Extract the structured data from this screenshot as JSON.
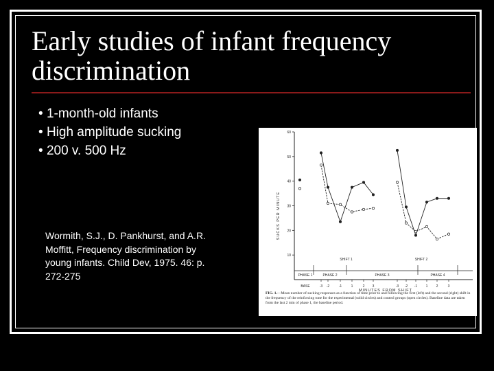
{
  "slide": {
    "title": "Early studies of infant frequency discrimination",
    "bullets": [
      "1-month-old infants",
      "High amplitude sucking",
      "200 v. 500 Hz"
    ],
    "citation": "Wormith, S.J., D. Pankhurst, and A.R. Moffitt, Frequency discrimination by young infants. Child Dev, 1975. 46: p. 272-275",
    "colors": {
      "background": "#000000",
      "text": "#ffffff",
      "rule": "#8b1a1a"
    }
  },
  "chart_data": {
    "type": "line",
    "ylabel": "SUCKS PER MINUTE",
    "xlabel": "MINUTES FROM SHIFT",
    "ylim": [
      0,
      60
    ],
    "yticks": [
      10,
      20,
      30,
      40,
      50,
      60
    ],
    "grid": false,
    "legend": "none",
    "shift_labels": [
      "SHIFT 1",
      "SHIFT 2"
    ],
    "phase_labels": [
      "PHASE 1",
      "PHASE 2",
      "PHASE 3",
      "PHASE 4"
    ],
    "base_label": "BASE",
    "panels": [
      {
        "name": "SHIFT 1",
        "x_labels": [
          "-3",
          "-2",
          "-1",
          "1",
          "2",
          "3"
        ],
        "series": [
          {
            "name": "experimental",
            "marker": "filled",
            "values": [
              51.5,
              37.5,
              23.5,
              37.5,
              39.5,
              34.5
            ]
          },
          {
            "name": "control",
            "marker": "open",
            "values": [
              46.5,
              31.0,
              30.5,
              27.5,
              28.5,
              29.0
            ]
          }
        ],
        "baseline": {
          "experimental": 40.5,
          "control": 37.0
        }
      },
      {
        "name": "SHIFT 2",
        "x_labels": [
          "-3",
          "-2",
          "-1",
          "1",
          "2",
          "3"
        ],
        "series": [
          {
            "name": "experimental",
            "marker": "filled",
            "values": [
              52.5,
              29.5,
              18.0,
              31.5,
              33.0,
              33.0
            ]
          },
          {
            "name": "control",
            "marker": "open",
            "values": [
              39.5,
              23.0,
              19.5,
              21.5,
              16.5,
              18.5
            ]
          }
        ]
      }
    ],
    "caption_label": "FIG. 1.",
    "caption": "—Mean number of sucking responses as a function of time prior to and following the first (left) and the second (right) shift in the frequency of the reinforcing tone for the experimental (solid circles) and control groups (open circles). Baseline data are taken from the last 2 min of phase 1, the baseline period."
  }
}
